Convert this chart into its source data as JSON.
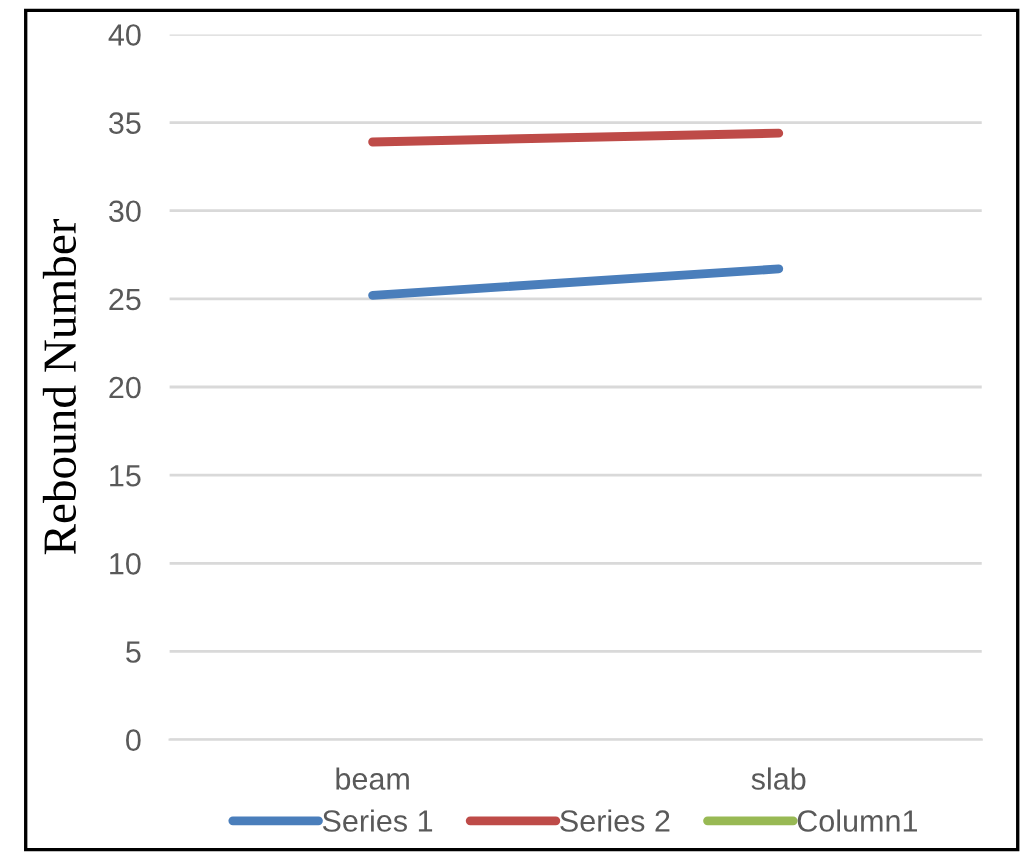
{
  "chart_data": {
    "type": "line",
    "ylabel": "Rebound Number",
    "categories": [
      "beam",
      "slab"
    ],
    "series": [
      {
        "name": "Series 1",
        "color": "#4a7ebb",
        "values": [
          25.2,
          26.7
        ]
      },
      {
        "name": "Series 2",
        "color": "#be4b48",
        "values": [
          33.9,
          34.4
        ]
      },
      {
        "name": "Column1",
        "color": "#98b954",
        "values": [
          null,
          null
        ]
      }
    ],
    "ylim": [
      0,
      40
    ],
    "yticks": [
      0,
      5,
      10,
      15,
      20,
      25,
      30,
      35,
      40
    ],
    "grid": "y",
    "legend": "bottom",
    "marker": "none",
    "line_style": "solid"
  }
}
